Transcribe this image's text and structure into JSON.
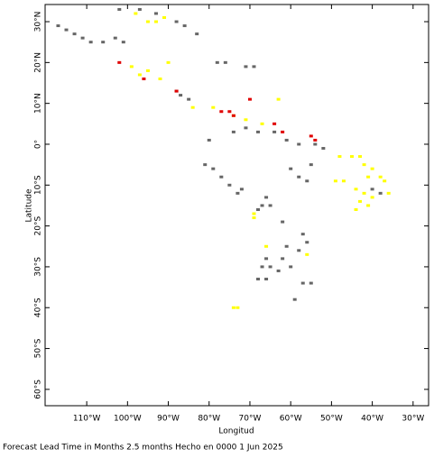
{
  "chart_data": {
    "type": "scatter",
    "xlabel": "Longitud",
    "ylabel": "Latitude",
    "footer": "Forecast Lead Time in Months 2.5 months Hecho en 0000 1 Jun 2025",
    "xlim": [
      -120.2,
      -26.2
    ],
    "ylim": [
      -64,
      34.2
    ],
    "xticks": [
      {
        "value": -110,
        "label": "110°W"
      },
      {
        "value": -100,
        "label": "100°W"
      },
      {
        "value": -90,
        "label": "90°W"
      },
      {
        "value": -80,
        "label": "80°W"
      },
      {
        "value": -70,
        "label": "70°W"
      },
      {
        "value": -60,
        "label": "60°W"
      },
      {
        "value": -50,
        "label": "50°W"
      },
      {
        "value": -40,
        "label": "40°W"
      },
      {
        "value": -30,
        "label": "30°W"
      }
    ],
    "yticks": [
      {
        "value": 30,
        "label": "30°N"
      },
      {
        "value": 20,
        "label": "20°N"
      },
      {
        "value": 10,
        "label": "10°N"
      },
      {
        "value": 0,
        "label": "0°"
      },
      {
        "value": -10,
        "label": "10°S"
      },
      {
        "value": -20,
        "label": "20°S"
      },
      {
        "value": -30,
        "label": "30°S"
      },
      {
        "value": -40,
        "label": "40°S"
      },
      {
        "value": -50,
        "label": "50°S"
      },
      {
        "value": -60,
        "label": "60°S"
      }
    ],
    "series": [
      {
        "color": "#666666",
        "x": [
          -117,
          -115,
          -113,
          -111,
          -109,
          -106,
          -103,
          -101,
          -102,
          -97,
          -93,
          -88,
          -86,
          -83,
          -78,
          -76,
          -71,
          -69,
          -88,
          -87,
          -85,
          -80,
          -74,
          -71,
          -68,
          -64,
          -61,
          -58,
          -54,
          -52,
          -81,
          -79,
          -77,
          -75,
          -73,
          -72,
          -60,
          -58,
          -56,
          -55,
          -66,
          -65,
          -67,
          -68,
          -62,
          -61,
          -58,
          -60,
          -62,
          -66,
          -67,
          -68,
          -66,
          -65,
          -63,
          -57,
          -56,
          -55,
          -57,
          -59,
          -40,
          -38
        ],
        "values": [
          29,
          28,
          27,
          26,
          25,
          25,
          26,
          25,
          33,
          33,
          32,
          30,
          29,
          27,
          20,
          20,
          19,
          19,
          13,
          12,
          11,
          1,
          3,
          4,
          3,
          3,
          1,
          0,
          0,
          -1,
          -5,
          -6,
          -8,
          -10,
          -12,
          -11,
          -6,
          -8,
          -9,
          -5,
          -13,
          -15,
          -15,
          -16,
          -19,
          -25,
          -26,
          -30,
          -28,
          -28,
          -30,
          -33,
          -33,
          -30,
          -31,
          -22,
          -24,
          -34,
          -34,
          -38,
          -11,
          -12
        ]
      },
      {
        "color": "#ffff00",
        "x": [
          -98,
          -95,
          -93,
          -91,
          -99,
          -97,
          -95,
          -92,
          -90,
          -84,
          -79,
          -74,
          -71,
          -67,
          -63,
          -69,
          -69,
          -66,
          -56,
          -48,
          -45,
          -43,
          -49,
          -47,
          -42,
          -40,
          -38,
          -41,
          -44,
          -42,
          -40,
          -43,
          -41,
          -44,
          -36,
          -37,
          -74,
          -73
        ],
        "values": [
          32,
          30,
          30,
          31,
          19,
          17,
          18,
          16,
          20,
          9,
          9,
          7,
          6,
          5,
          11,
          -18,
          -17,
          -25,
          -27,
          -3,
          -3,
          -3,
          -9,
          -9,
          -5,
          -6,
          -8,
          -8,
          -11,
          -12,
          -13,
          -14,
          -15,
          -16,
          -12,
          -9,
          -40,
          -40
        ]
      },
      {
        "color": "#e00000",
        "x": [
          -102,
          -96,
          -88,
          -77,
          -75,
          -74,
          -70,
          -64,
          -62,
          -55,
          -54
        ],
        "values": [
          20,
          16,
          13,
          8,
          8,
          7,
          11,
          5,
          3,
          2,
          1
        ]
      }
    ]
  }
}
